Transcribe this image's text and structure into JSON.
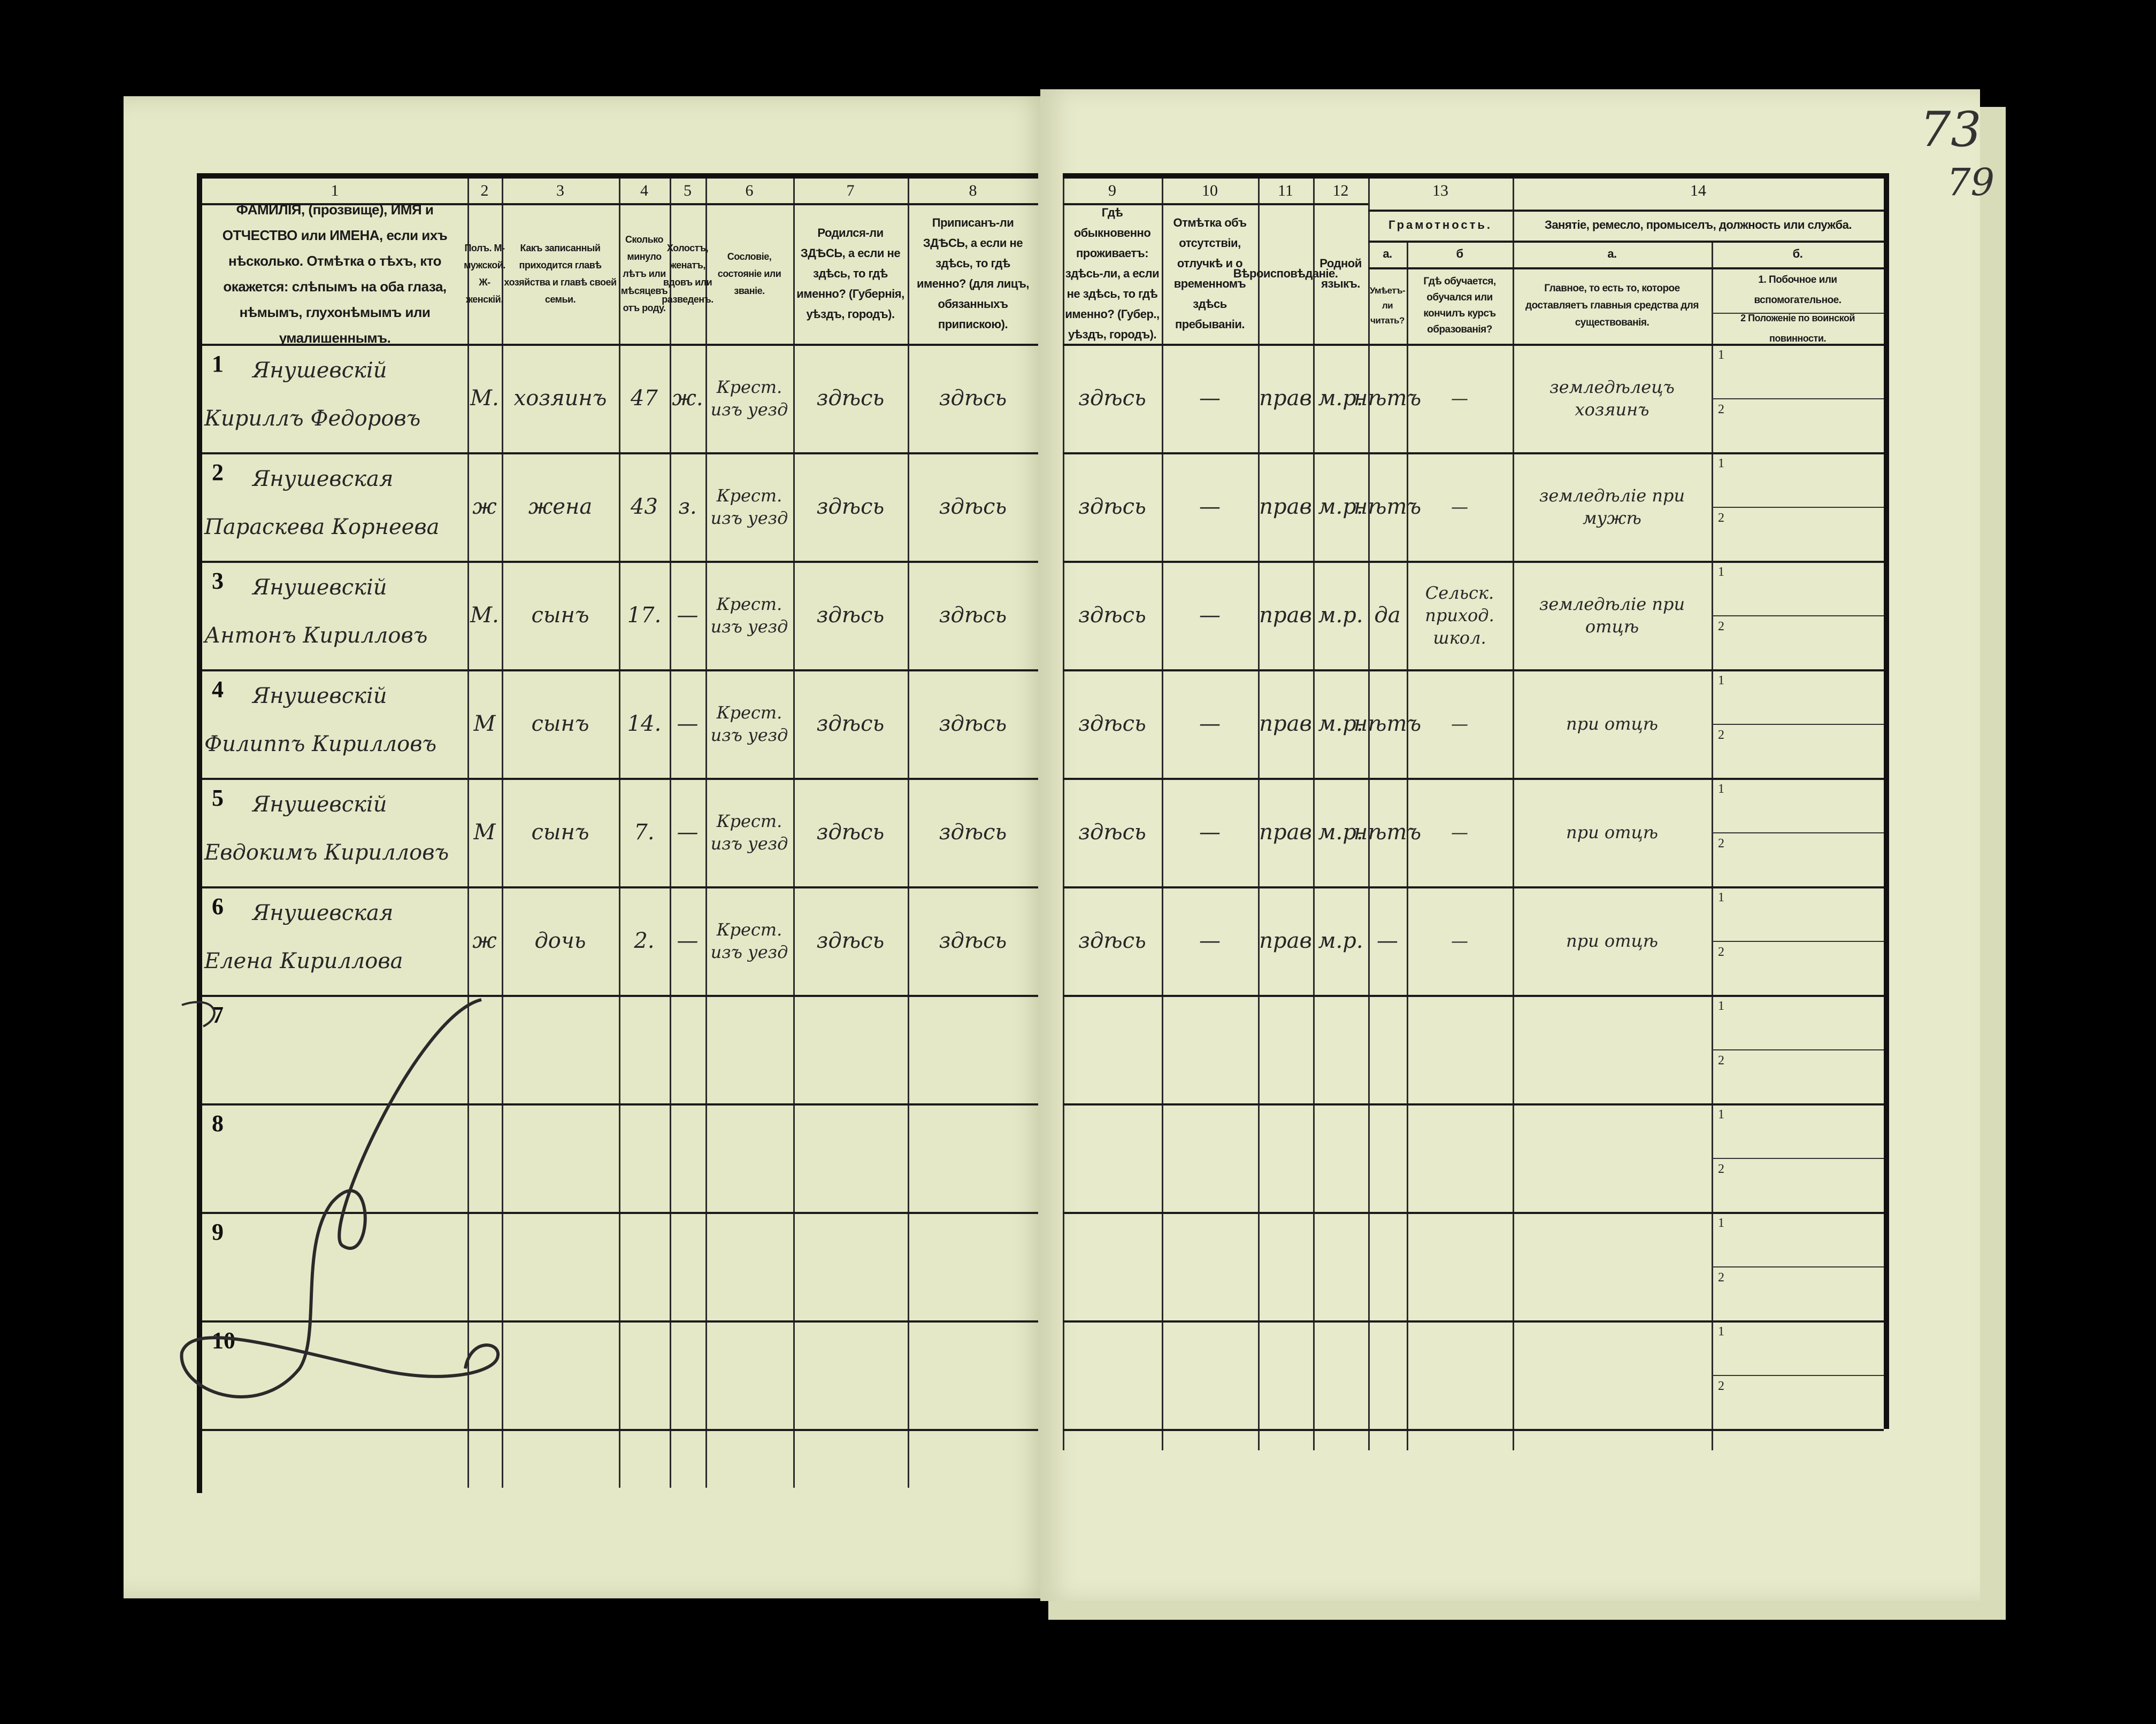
{
  "folio": {
    "primary": "73",
    "secondary": "79"
  },
  "header": {
    "column_numbers": [
      "1",
      "2",
      "3",
      "4",
      "5",
      "6",
      "7",
      "8",
      "9",
      "10",
      "11",
      "12",
      "13",
      "14"
    ],
    "columns": {
      "c1": "ФАМИЛІЯ, (прозвище), ИМЯ и ОТЧЕСТВО или ИМЕНА, если ихъ нѣсколько. Отмѣтка о тѣхъ, кто окажется: слѣпымъ на оба глаза, нѣмымъ, глухонѣмымъ или умалишеннымъ.",
      "c2": "Полъ. М-мужской. Ж-женскій.",
      "c3": "Какъ записанный приходится главѣ хозяйства и главѣ своей семьи.",
      "c4": "Сколько минуло лѣтъ или мѣсяцевъ отъ роду.",
      "c5": "Холостъ, женатъ, вдовъ или разведенъ.",
      "c6": "Сословіе, состояніе или званіе.",
      "c7": "Родился-ли ЗДѢСЬ, а если не здѣсь, то гдѣ именно? (Губернія, уѣздъ, городъ).",
      "c8": "Приписанъ-ли ЗДѢСЬ, а если не здѣсь, то гдѣ именно? (для лицъ, обязанныхъ припискою).",
      "c9": "Гдѣ обыкновенно проживаетъ: здѣсь-ли, а если не здѣсь, то гдѣ именно? (Губер., уѣздъ, городъ).",
      "c10": "Отмѣтка объ отсутствіи, отлучкѣ и о временномъ здѣсь пребываніи.",
      "c11": "Вѣроисповѣданіе.",
      "c12": "Родной языкъ.",
      "c13": "Грамотность.",
      "c13a_letter": "а.",
      "c13a": "Умѣетъ-ли читать?",
      "c13b_letter": "б",
      "c13b": "Гдѣ обучается, обучался или кончилъ курсъ образованія?",
      "c14": "Занятіе, ремесло, промыселъ, должность или служба.",
      "c14a_letter": "а.",
      "c14a": "Главное, то есть то, которое доставляетъ главныя средства для существованія.",
      "c14b_letter": "б.",
      "c14b1": "1. Побочное или вспомогательное.",
      "c14b2": "2 Положеніе по воинской повинности."
    }
  },
  "rows": [
    {
      "no": "1",
      "surname": "Янушевскій",
      "name": "Кириллъ Федоровъ",
      "sex": "М.",
      "relation": "хозяинъ",
      "age": "47",
      "marital": "ж.",
      "estate": "Крест. изъ уезд",
      "born": "здѣсь",
      "registered": "здѣсь",
      "residence": "здѣсь",
      "absence": "—",
      "religion": "прав",
      "language": "м.р.",
      "literate": "нѣтъ",
      "school": "—",
      "occupation": "земледѣлецъ хозяинъ",
      "sub1": "1",
      "sub2": "2"
    },
    {
      "no": "2",
      "surname": "Янушевская",
      "name": "Параскева Корнеева",
      "sex": "ж",
      "relation": "жена",
      "age": "43",
      "marital": "з.",
      "estate": "Крест. изъ уезд",
      "born": "здѣсь",
      "registered": "здѣсь",
      "residence": "здѣсь",
      "absence": "—",
      "religion": "прав",
      "language": "м.р.",
      "literate": "нѣтъ",
      "school": "—",
      "occupation": "земледѣліе при мужѣ",
      "sub1": "1",
      "sub2": "2"
    },
    {
      "no": "3",
      "surname": "Янушевскій",
      "name": "Антонъ Кирилловъ",
      "sex": "М.",
      "relation": "сынъ",
      "age": "17.",
      "marital": "—",
      "estate": "Крест. изъ уезд",
      "born": "здѣсь",
      "registered": "здѣсь",
      "residence": "здѣсь",
      "absence": "—",
      "religion": "прав",
      "language": "м.р.",
      "literate": "да",
      "school": "Сельск. приход. школ.",
      "occupation": "земледѣліе при отцѣ",
      "sub1": "1",
      "sub2": "2"
    },
    {
      "no": "4",
      "surname": "Янушевскій",
      "name": "Филиппъ Кирилловъ",
      "sex": "М",
      "relation": "сынъ",
      "age": "14.",
      "marital": "—",
      "estate": "Крест. изъ уезд",
      "born": "здѣсь",
      "registered": "здѣсь",
      "residence": "здѣсь",
      "absence": "—",
      "religion": "прав",
      "language": "м.р.",
      "literate": "нѣтъ",
      "school": "—",
      "occupation": "при отцѣ",
      "sub1": "1",
      "sub2": "2"
    },
    {
      "no": "5",
      "surname": "Янушевскій",
      "name": "Евдокимъ Кирилловъ",
      "sex": "М",
      "relation": "сынъ",
      "age": "7.",
      "marital": "—",
      "estate": "Крест. изъ уезд",
      "born": "здѣсь",
      "registered": "здѣсь",
      "residence": "здѣсь",
      "absence": "—",
      "religion": "прав",
      "language": "м.р.",
      "literate": "нѣтъ",
      "school": "—",
      "occupation": "при отцѣ",
      "sub1": "1",
      "sub2": "2"
    },
    {
      "no": "6",
      "surname": "Янушевская",
      "name": "Елена Кириллова",
      "sex": "ж",
      "relation": "дочь",
      "age": "2.",
      "marital": "—",
      "estate": "Крест. изъ уезд",
      "born": "здѣсь",
      "registered": "здѣсь",
      "residence": "здѣсь",
      "absence": "—",
      "religion": "прав",
      "language": "м.р.",
      "literate": "—",
      "school": "—",
      "occupation": "при отцѣ",
      "sub1": "1",
      "sub2": "2"
    },
    {
      "no": "7",
      "sub1": "1",
      "sub2": "2"
    },
    {
      "no": "8",
      "sub1": "1",
      "sub2": "2"
    },
    {
      "no": "9",
      "sub1": "1",
      "sub2": "2"
    },
    {
      "no": "10",
      "sub1": "1",
      "sub2": "2"
    }
  ]
}
